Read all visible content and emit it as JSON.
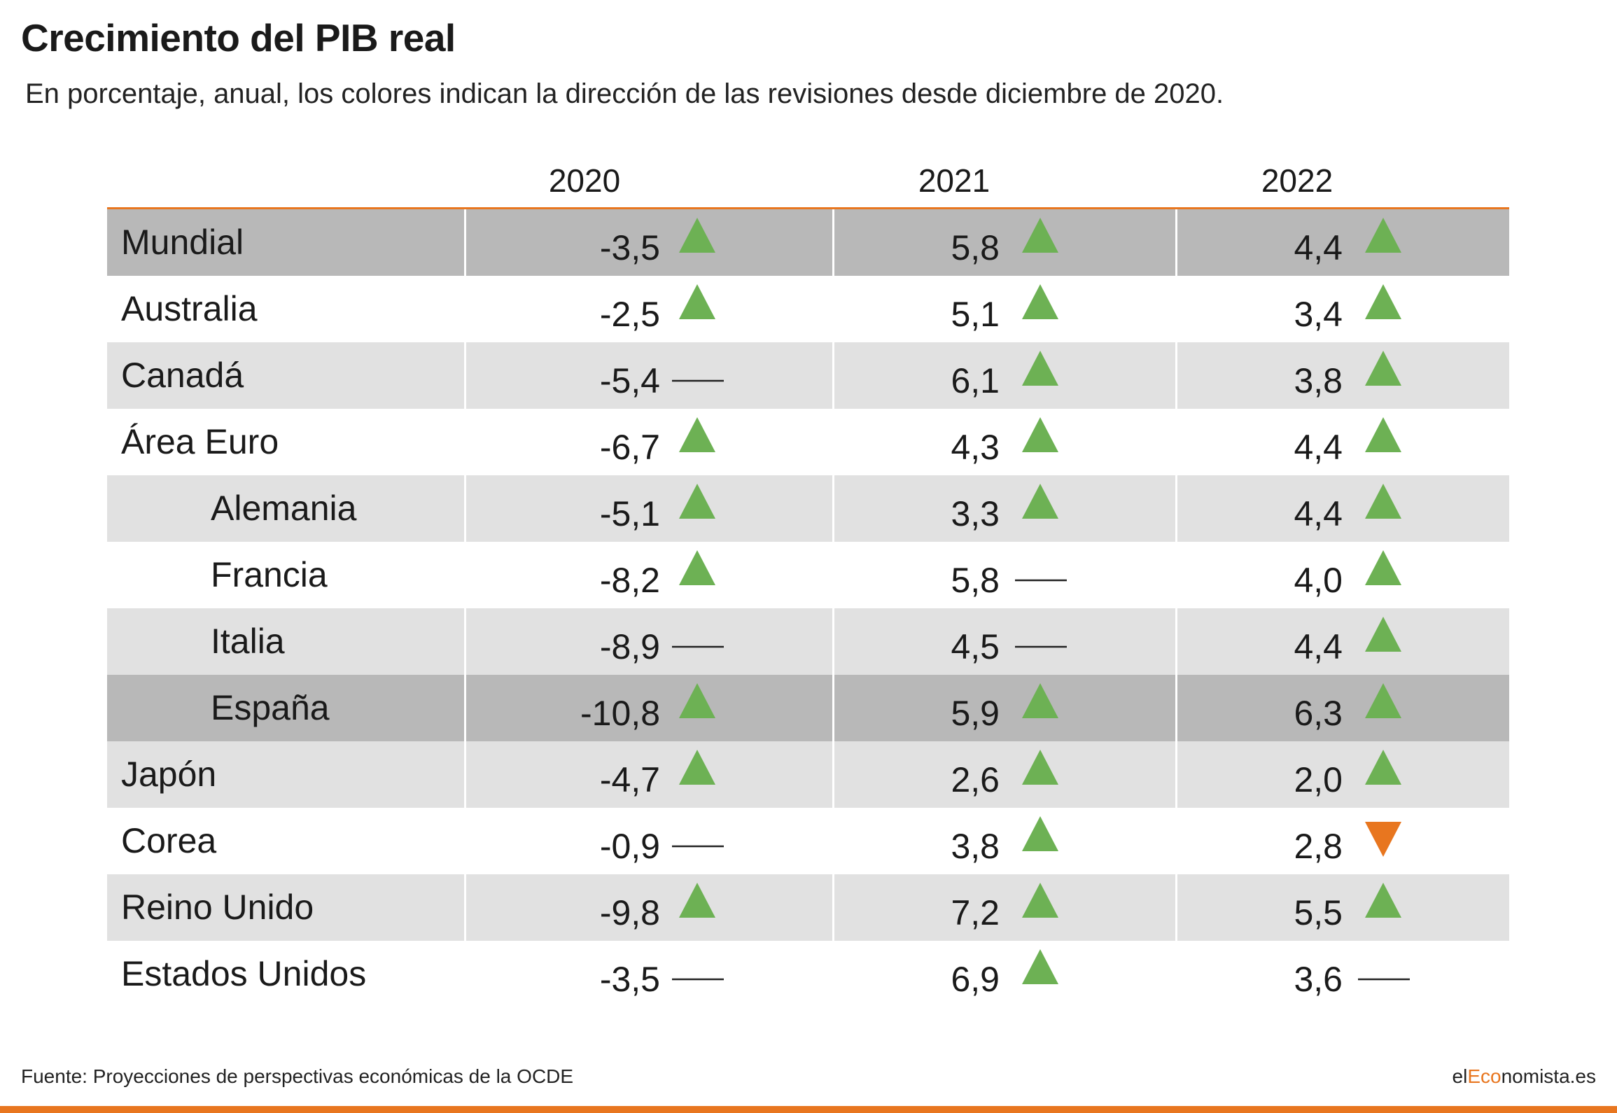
{
  "title": "Crecimiento del PIB real",
  "subtitle": "En porcentaje, anual, los colores indican la dirección de las revisiones desde diciembre de 2020.",
  "colors": {
    "accent": "#e8761f",
    "up": "#6db154",
    "down": "#e8761f",
    "band_light": "#e1e1e1",
    "band_dark": "#b8b8b8",
    "row_white": "#ffffff"
  },
  "chart_data": {
    "type": "table",
    "columns": [
      "2020",
      "2021",
      "2022"
    ],
    "rows": [
      {
        "country": "Mundial",
        "indent": false,
        "highlight": "dark",
        "values": [
          "-3,5",
          "5,8",
          "4,4"
        ],
        "revisions": [
          "up",
          "up",
          "up"
        ]
      },
      {
        "country": "Australia",
        "indent": false,
        "highlight": "white",
        "values": [
          "-2,5",
          "5,1",
          "3,4"
        ],
        "revisions": [
          "up",
          "up",
          "up"
        ]
      },
      {
        "country": "Canadá",
        "indent": false,
        "highlight": "light",
        "values": [
          "-5,4",
          "6,1",
          "3,8"
        ],
        "revisions": [
          "flat",
          "up",
          "up"
        ]
      },
      {
        "country": "Área Euro",
        "indent": false,
        "highlight": "white",
        "values": [
          "-6,7",
          "4,3",
          "4,4"
        ],
        "revisions": [
          "up",
          "up",
          "up"
        ]
      },
      {
        "country": "Alemania",
        "indent": true,
        "highlight": "light",
        "values": [
          "-5,1",
          "3,3",
          "4,4"
        ],
        "revisions": [
          "up",
          "up",
          "up"
        ]
      },
      {
        "country": "Francia",
        "indent": true,
        "highlight": "white",
        "values": [
          "-8,2",
          "5,8",
          "4,0"
        ],
        "revisions": [
          "up",
          "flat",
          "up"
        ]
      },
      {
        "country": "Italia",
        "indent": true,
        "highlight": "light",
        "values": [
          "-8,9",
          "4,5",
          "4,4"
        ],
        "revisions": [
          "flat",
          "flat",
          "up"
        ]
      },
      {
        "country": "España",
        "indent": true,
        "highlight": "dark",
        "values": [
          "-10,8",
          "5,9",
          "6,3"
        ],
        "revisions": [
          "up",
          "up",
          "up"
        ]
      },
      {
        "country": "Japón",
        "indent": false,
        "highlight": "light",
        "values": [
          "-4,7",
          "2,6",
          "2,0"
        ],
        "revisions": [
          "up",
          "up",
          "up"
        ]
      },
      {
        "country": "Corea",
        "indent": false,
        "highlight": "white",
        "values": [
          "-0,9",
          "3,8",
          "2,8"
        ],
        "revisions": [
          "flat",
          "up",
          "down"
        ]
      },
      {
        "country": "Reino Unido",
        "indent": false,
        "highlight": "light",
        "values": [
          "-9,8",
          "7,2",
          "5,5"
        ],
        "revisions": [
          "up",
          "up",
          "up"
        ]
      },
      {
        "country": "Estados Unidos",
        "indent": false,
        "highlight": "white",
        "values": [
          "-3,5",
          "6,9",
          "3,6"
        ],
        "revisions": [
          "flat",
          "up",
          "flat"
        ]
      }
    ]
  },
  "footer": {
    "source": "Fuente: Proyecciones de perspectivas económicas de la OCDE",
    "brand_prefix": "el",
    "brand_accent": "Eco",
    "brand_suffix": "nomista.es"
  }
}
